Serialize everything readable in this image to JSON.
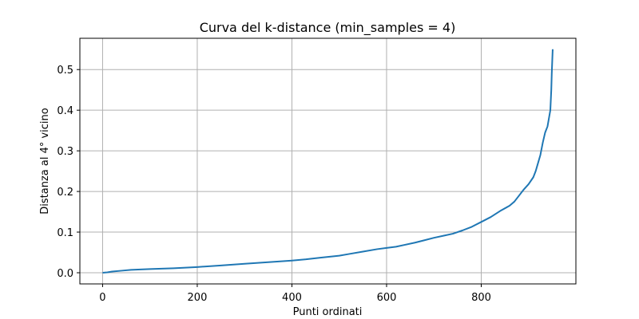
{
  "chart_data": {
    "type": "line",
    "title": "Curva del k-distance (min_samples = 4)",
    "xlabel": "Punti ordinati",
    "ylabel": "Distanza al 4° vicino",
    "xlim": [
      -48,
      1000
    ],
    "ylim": [
      -0.0275,
      0.577
    ],
    "xticks": [
      0,
      200,
      400,
      600,
      800
    ],
    "yticks": [
      0.0,
      0.1,
      0.2,
      0.3,
      0.4,
      0.5
    ],
    "xtick_labels": [
      "0",
      "200",
      "400",
      "600",
      "800"
    ],
    "ytick_labels": [
      "0.0",
      "0.1",
      "0.2",
      "0.3",
      "0.4",
      "0.5"
    ],
    "grid": true,
    "line_color": "#1f77b4",
    "series": [
      {
        "x": [
          0,
          10,
          20,
          40,
          60,
          80,
          100,
          150,
          200,
          250,
          300,
          350,
          400,
          430,
          460,
          500,
          520,
          550,
          580,
          600,
          620,
          640,
          660,
          680,
          700,
          720,
          740,
          760,
          780,
          800,
          820,
          840,
          860,
          870,
          880,
          890,
          900,
          910,
          915,
          920,
          925,
          930,
          935,
          940,
          943,
          946,
          948,
          949,
          950,
          951
        ],
        "y": [
          0.0,
          0.001,
          0.003,
          0.005,
          0.007,
          0.008,
          0.009,
          0.011,
          0.014,
          0.018,
          0.022,
          0.026,
          0.03,
          0.033,
          0.037,
          0.042,
          0.046,
          0.052,
          0.058,
          0.061,
          0.064,
          0.069,
          0.074,
          0.08,
          0.086,
          0.091,
          0.096,
          0.104,
          0.113,
          0.125,
          0.137,
          0.152,
          0.165,
          0.175,
          0.19,
          0.205,
          0.218,
          0.235,
          0.25,
          0.27,
          0.29,
          0.32,
          0.345,
          0.36,
          0.38,
          0.4,
          0.45,
          0.49,
          0.52,
          0.55
        ]
      }
    ]
  }
}
